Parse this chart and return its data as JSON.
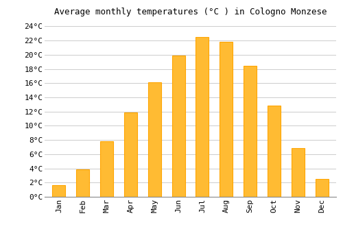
{
  "title": "Average monthly temperatures (°C ) in Cologno Monzese",
  "months": [
    "Jan",
    "Feb",
    "Mar",
    "Apr",
    "May",
    "Jun",
    "Jul",
    "Aug",
    "Sep",
    "Oct",
    "Nov",
    "Dec"
  ],
  "temperatures": [
    1.6,
    3.9,
    7.8,
    11.9,
    16.1,
    19.9,
    22.5,
    21.8,
    18.4,
    12.8,
    6.9,
    2.5
  ],
  "bar_color": "#FFBB33",
  "bar_edge_color": "#FFA500",
  "background_color": "#FFFFFF",
  "grid_color": "#CCCCCC",
  "ytick_labels": [
    "0°C",
    "2°C",
    "4°C",
    "6°C",
    "8°C",
    "10°C",
    "12°C",
    "14°C",
    "16°C",
    "18°C",
    "20°C",
    "22°C",
    "24°C"
  ],
  "ytick_values": [
    0,
    2,
    4,
    6,
    8,
    10,
    12,
    14,
    16,
    18,
    20,
    22,
    24
  ],
  "ylim": [
    0,
    25
  ],
  "title_fontsize": 9,
  "tick_fontsize": 8,
  "font_family": "monospace",
  "bar_width": 0.55
}
